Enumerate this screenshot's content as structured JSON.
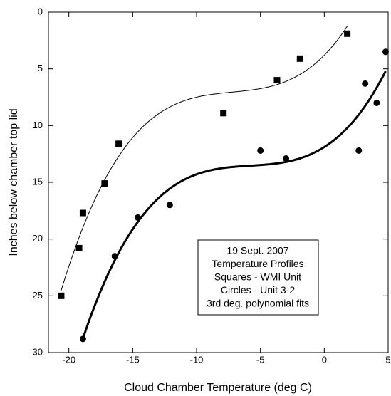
{
  "chart_data": {
    "type": "scatter",
    "x_label": "Cloud Chamber Temperature (deg C)",
    "y_label": "Inches below chamber top lid",
    "xlim": [
      -21.6,
      5
    ],
    "xticks": [
      -20,
      -15,
      -10,
      -5,
      0,
      5
    ],
    "ylim": [
      0,
      30
    ],
    "yticks": [
      0,
      5,
      10,
      15,
      20,
      25,
      30
    ],
    "y_inverted": true,
    "fit_degree": 3,
    "annotation": [
      "19 Sept. 2007",
      "Temperature Profiles",
      "Squares - WMI Unit",
      "Circles - Unit 3-2",
      "3rd deg. polynomial fits"
    ],
    "series": [
      {
        "marker": "square",
        "color": "#000000",
        "fit_width": 1,
        "x": [
          -20.6,
          -19.2,
          -18.9,
          -17.2,
          -16.1,
          -7.9,
          -3.7,
          -1.9,
          1.8
        ],
        "values": [
          25.0,
          20.8,
          17.7,
          15.1,
          11.6,
          8.9,
          6.0,
          4.1,
          1.9
        ]
      },
      {
        "marker": "circle",
        "color": "#000000",
        "fit_width": 3,
        "x": [
          -18.9,
          -16.4,
          -14.6,
          -12.1,
          -5.0,
          -3.0,
          2.7,
          3.2,
          4.1,
          4.8
        ],
        "values": [
          28.8,
          21.5,
          18.1,
          17.0,
          12.2,
          12.9,
          12.2,
          6.3,
          8.0,
          3.5
        ]
      }
    ]
  }
}
